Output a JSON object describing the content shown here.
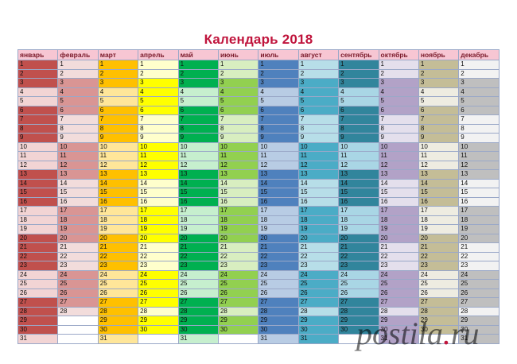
{
  "title": "Календарь 2018",
  "months": [
    {
      "name": "январь",
      "days": 31,
      "colors": [
        "#c0504d",
        "#f2d4d4"
      ]
    },
    {
      "name": "февраль",
      "days": 28,
      "colors": [
        "#d99594",
        "#f2dcdb"
      ]
    },
    {
      "name": "март",
      "days": 31,
      "colors": [
        "#ffc000",
        "#ffe699"
      ]
    },
    {
      "name": "апрель",
      "days": 30,
      "colors": [
        "#ffff00",
        "#ffffcc"
      ]
    },
    {
      "name": "май",
      "days": 31,
      "colors": [
        "#00b050",
        "#c6efce"
      ]
    },
    {
      "name": "июнь",
      "days": 30,
      "colors": [
        "#92d050",
        "#d8eec0"
      ]
    },
    {
      "name": "июль",
      "days": 31,
      "colors": [
        "#4f81bd",
        "#b8cce4"
      ]
    },
    {
      "name": "август",
      "days": 31,
      "colors": [
        "#4bacc6",
        "#b7dee8"
      ]
    },
    {
      "name": "сентябрь",
      "days": 30,
      "colors": [
        "#31859c",
        "#a9d6e5"
      ]
    },
    {
      "name": "октябрь",
      "days": 31,
      "colors": [
        "#b2a2c7",
        "#e4dfec"
      ]
    },
    {
      "name": "ноябрь",
      "days": 30,
      "colors": [
        "#c4bd97",
        "#eeece1"
      ]
    },
    {
      "name": "декабрь",
      "days": 31,
      "colors": [
        "#bfbfbf",
        "#f2f2f2"
      ]
    }
  ],
  "watermark": {
    "brand": "postila",
    "dot": ".",
    "tld": "ru"
  }
}
